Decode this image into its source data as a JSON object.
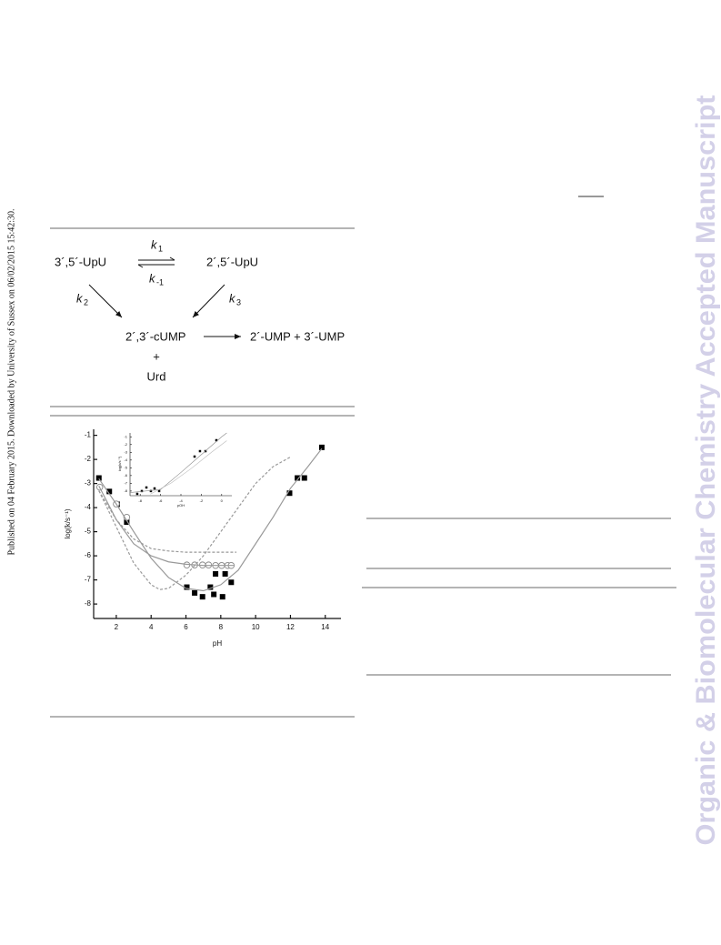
{
  "page": {
    "side_note": "Published on 04 February 2015. Downloaded by University of Sussex on 06/02/2015 15:42:30.",
    "watermark": "Organic & Biomolecular Chemistry Accepted Manuscript",
    "scheme": {
      "reactant": "3´,5´-UpU",
      "isomer": "2´,5´-UpU",
      "k1": {
        "symbol": "k",
        "subscript": "1"
      },
      "k_minus1": {
        "symbol": "k",
        "subscript": "-1"
      },
      "k2": {
        "symbol": "k",
        "subscript": "2"
      },
      "k3": {
        "symbol": "k",
        "subscript": "3"
      },
      "intermediate": "2´,3´-cUMP",
      "products": "2´-UMP + 3´-UMP",
      "plus": "+",
      "nucleoside": "Urd"
    }
  },
  "chart_data": [
    {
      "type": "scatter",
      "xlabel": "pH",
      "ylabel": "log(k/s⁻¹)",
      "xlim": [
        0.7,
        14.9
      ],
      "ylim": [
        -8.6,
        -0.75
      ],
      "xticks": [
        2,
        4,
        6,
        8,
        10,
        12,
        14
      ],
      "yticks": [
        -1,
        -2,
        -3,
        -4,
        -5,
        -6,
        -7,
        -8
      ],
      "grid": false,
      "series": [
        {
          "mode": "markers",
          "marker": "square",
          "color": "#000000",
          "x": [
            1,
            1.6,
            2.05,
            2.6,
            6.05,
            6.5,
            6.95,
            7.4,
            7.6,
            7.7,
            8.1,
            8.25,
            8.6,
            11.95,
            12.4,
            12.8,
            13.8
          ],
          "values": [
            -2.77,
            -3.33,
            -3.86,
            -4.6,
            -7.3,
            -7.54,
            -7.7,
            -7.3,
            -7.6,
            -6.75,
            -7.7,
            -6.75,
            -7.1,
            -3.4,
            -2.77,
            -2.77,
            -1.5
          ]
        },
        {
          "mode": "markers",
          "marker": "circle",
          "color": "#888888",
          "x": [
            1.05,
            2,
            2.6,
            6.05,
            6.5,
            6.95,
            7.3,
            7.7,
            8.05,
            8.4,
            8.6
          ],
          "values": [
            -3.15,
            -3.85,
            -4.4,
            -6.38,
            -6.38,
            -6.38,
            -6.38,
            -6.4,
            -6.4,
            -6.4,
            -6.4
          ]
        },
        {
          "mode": "line",
          "dash": false,
          "color": "#999999",
          "x": [
            1,
            2,
            3,
            4,
            5,
            6,
            7,
            8,
            9,
            10,
            11,
            12,
            13,
            13.8
          ],
          "values": [
            -2.8,
            -3.85,
            -5.0,
            -6.1,
            -6.9,
            -7.35,
            -7.45,
            -7.2,
            -6.6,
            -5.5,
            -4.4,
            -3.2,
            -2.3,
            -1.55
          ]
        },
        {
          "mode": "line",
          "dash": false,
          "color": "#999999",
          "x": [
            1,
            2,
            3,
            4,
            5,
            6,
            7,
            8.8
          ],
          "values": [
            -3.1,
            -4.5,
            -5.5,
            -6.0,
            -6.25,
            -6.35,
            -6.4,
            -6.4
          ]
        },
        {
          "mode": "line",
          "dash": true,
          "color": "#999999",
          "x": [
            1,
            2,
            3,
            4,
            4.5,
            5,
            6,
            7,
            8,
            9,
            10,
            11,
            12
          ],
          "values": [
            -3.3,
            -4.8,
            -6.3,
            -7.2,
            -7.4,
            -7.35,
            -6.8,
            -6.0,
            -5.0,
            -4.0,
            -3.0,
            -2.3,
            -1.9
          ]
        },
        {
          "mode": "line",
          "dash": true,
          "color": "#999999",
          "x": [
            1,
            2,
            3,
            4,
            5,
            6,
            8.9
          ],
          "values": [
            -3.3,
            -4.5,
            -5.3,
            -5.7,
            -5.8,
            -5.85,
            -5.85
          ]
        }
      ]
    },
    {
      "type": "scatter",
      "xlabel": "pOH",
      "ylabel": "log(k/s⁻¹)",
      "xlim": [
        -9,
        1
      ],
      "ylim": [
        -8.6,
        -0.5
      ],
      "xticks": [
        -8,
        -6,
        -4,
        -2,
        0
      ],
      "yticks": [
        -1,
        -2,
        -3,
        -4,
        -5,
        -6,
        -7,
        -8
      ],
      "grid": false,
      "series": [
        {
          "mode": "markers",
          "marker": "square",
          "color": "#000000",
          "x": [
            -8.29,
            -7.84,
            -7.39,
            -6.95,
            -6.59,
            -6.14,
            -2.66,
            -2.13,
            -1.59,
            -0.52
          ],
          "values": [
            -8.36,
            -8.0,
            -7.54,
            -8.0,
            -7.66,
            -8.0,
            -3.55,
            -2.85,
            -2.85,
            -1.44
          ]
        },
        {
          "mode": "line",
          "dash": false,
          "color": "#888888",
          "x": [
            -9,
            -6,
            -4,
            -2,
            0,
            0.5
          ],
          "values": [
            -8.2,
            -7.8,
            -5.6,
            -3.3,
            -1.0,
            -0.5
          ]
        },
        {
          "mode": "line",
          "dash": false,
          "color": "#bbbbbb",
          "x": [
            -7,
            -5,
            -3,
            -1,
            0.5
          ],
          "values": [
            -8.4,
            -7.0,
            -5.1,
            -3.0,
            -1.5
          ]
        }
      ]
    }
  ]
}
